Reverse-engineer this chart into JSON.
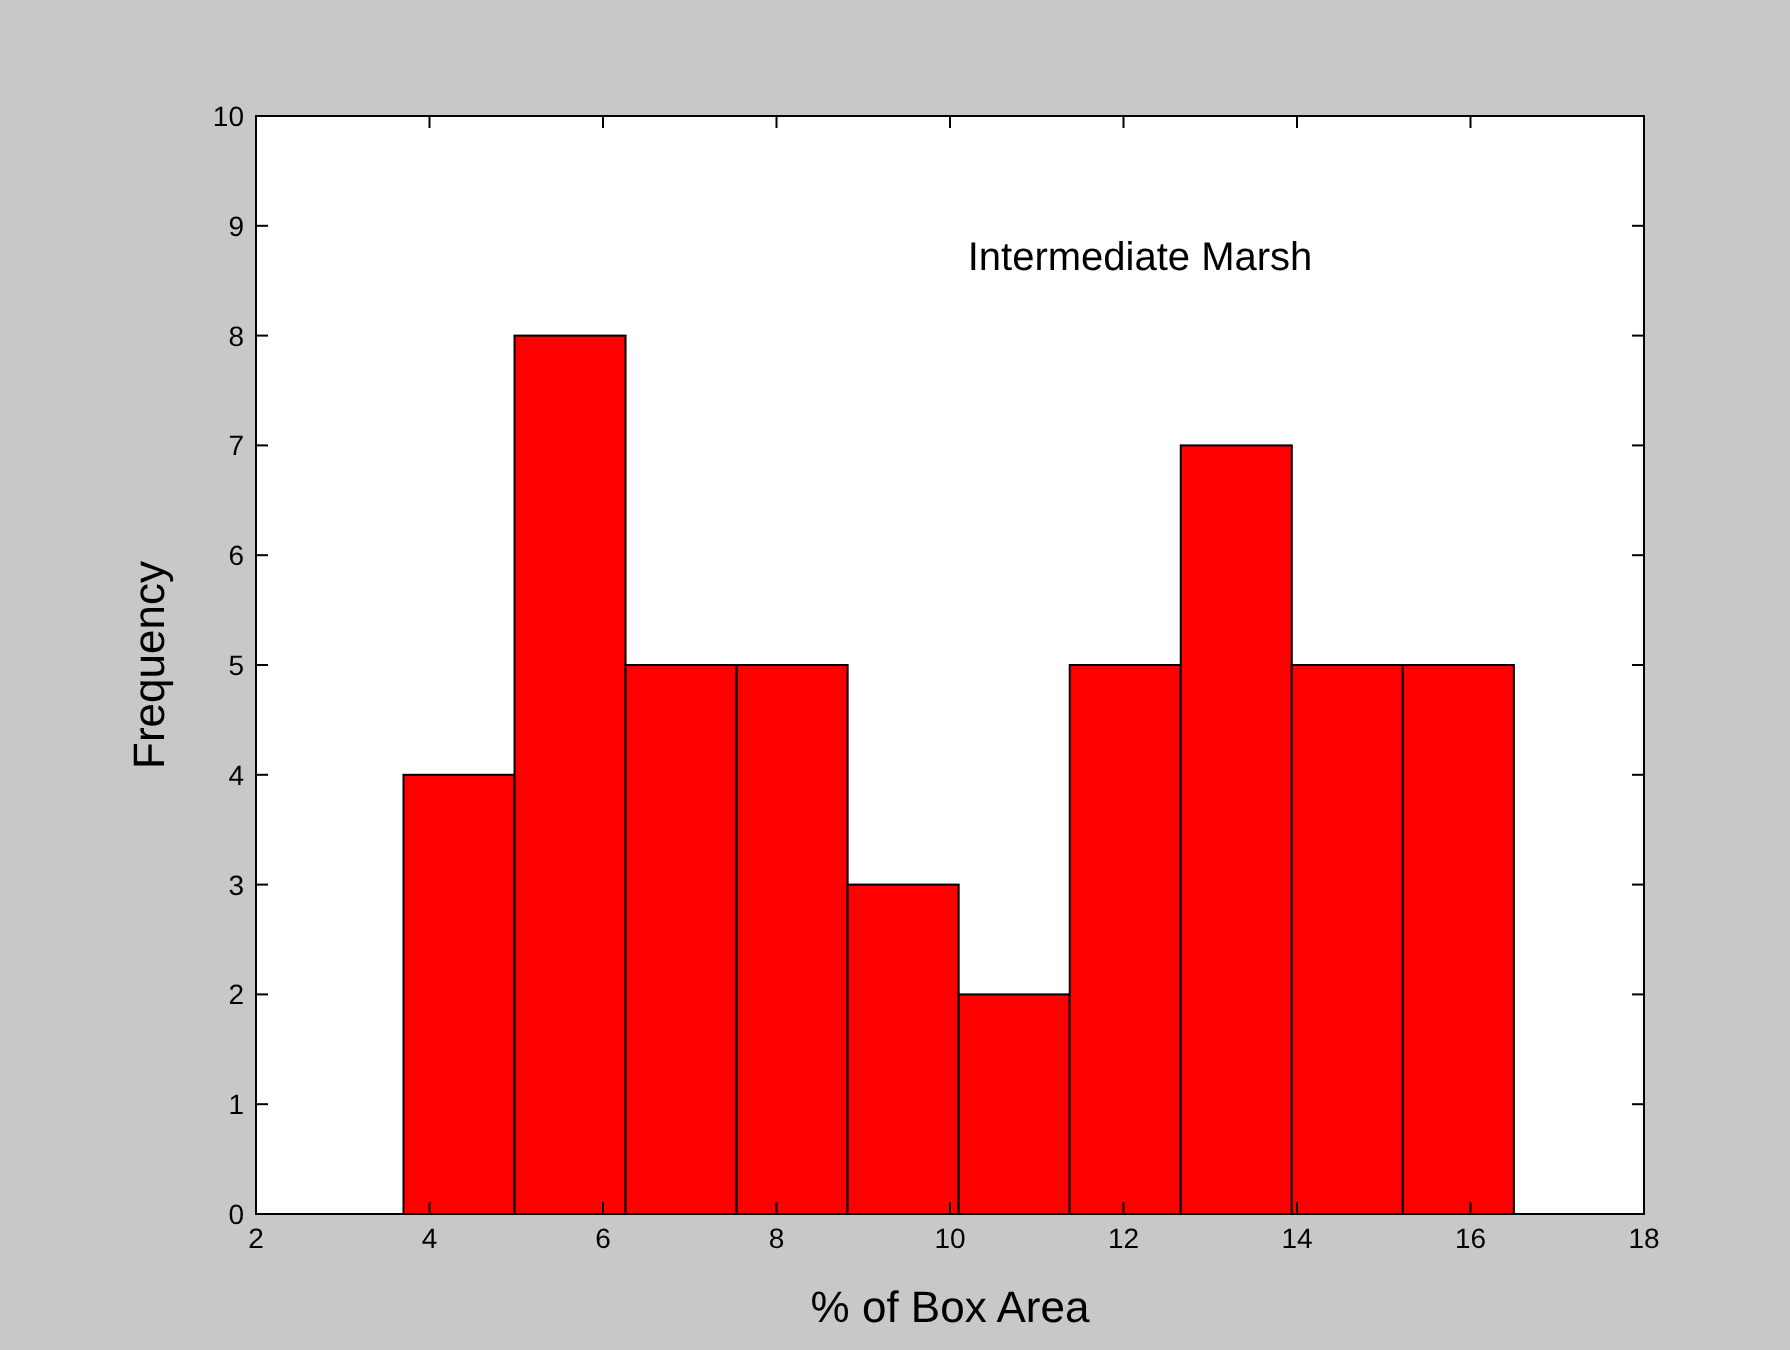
{
  "chart_data": {
    "type": "histogram",
    "xlabel": "% of Box Area",
    "ylabel": "Frequency",
    "annotations": [
      "Intermediate Marsh"
    ],
    "bins": [
      3.7,
      4.98,
      6.26,
      7.54,
      8.82,
      10.1,
      11.38,
      12.66,
      13.94,
      15.22,
      16.5
    ],
    "values": [
      4,
      8,
      5,
      5,
      3,
      2,
      5,
      7,
      5,
      5
    ],
    "color": "#ff0000",
    "xlim": [
      2,
      18
    ],
    "xticks": [
      2,
      4,
      6,
      8,
      10,
      12,
      14,
      16,
      18
    ],
    "ylim": [
      0,
      10
    ],
    "yticks": [
      0,
      1,
      2,
      3,
      4,
      5,
      6,
      7,
      8,
      9,
      10
    ],
    "grid": false
  }
}
